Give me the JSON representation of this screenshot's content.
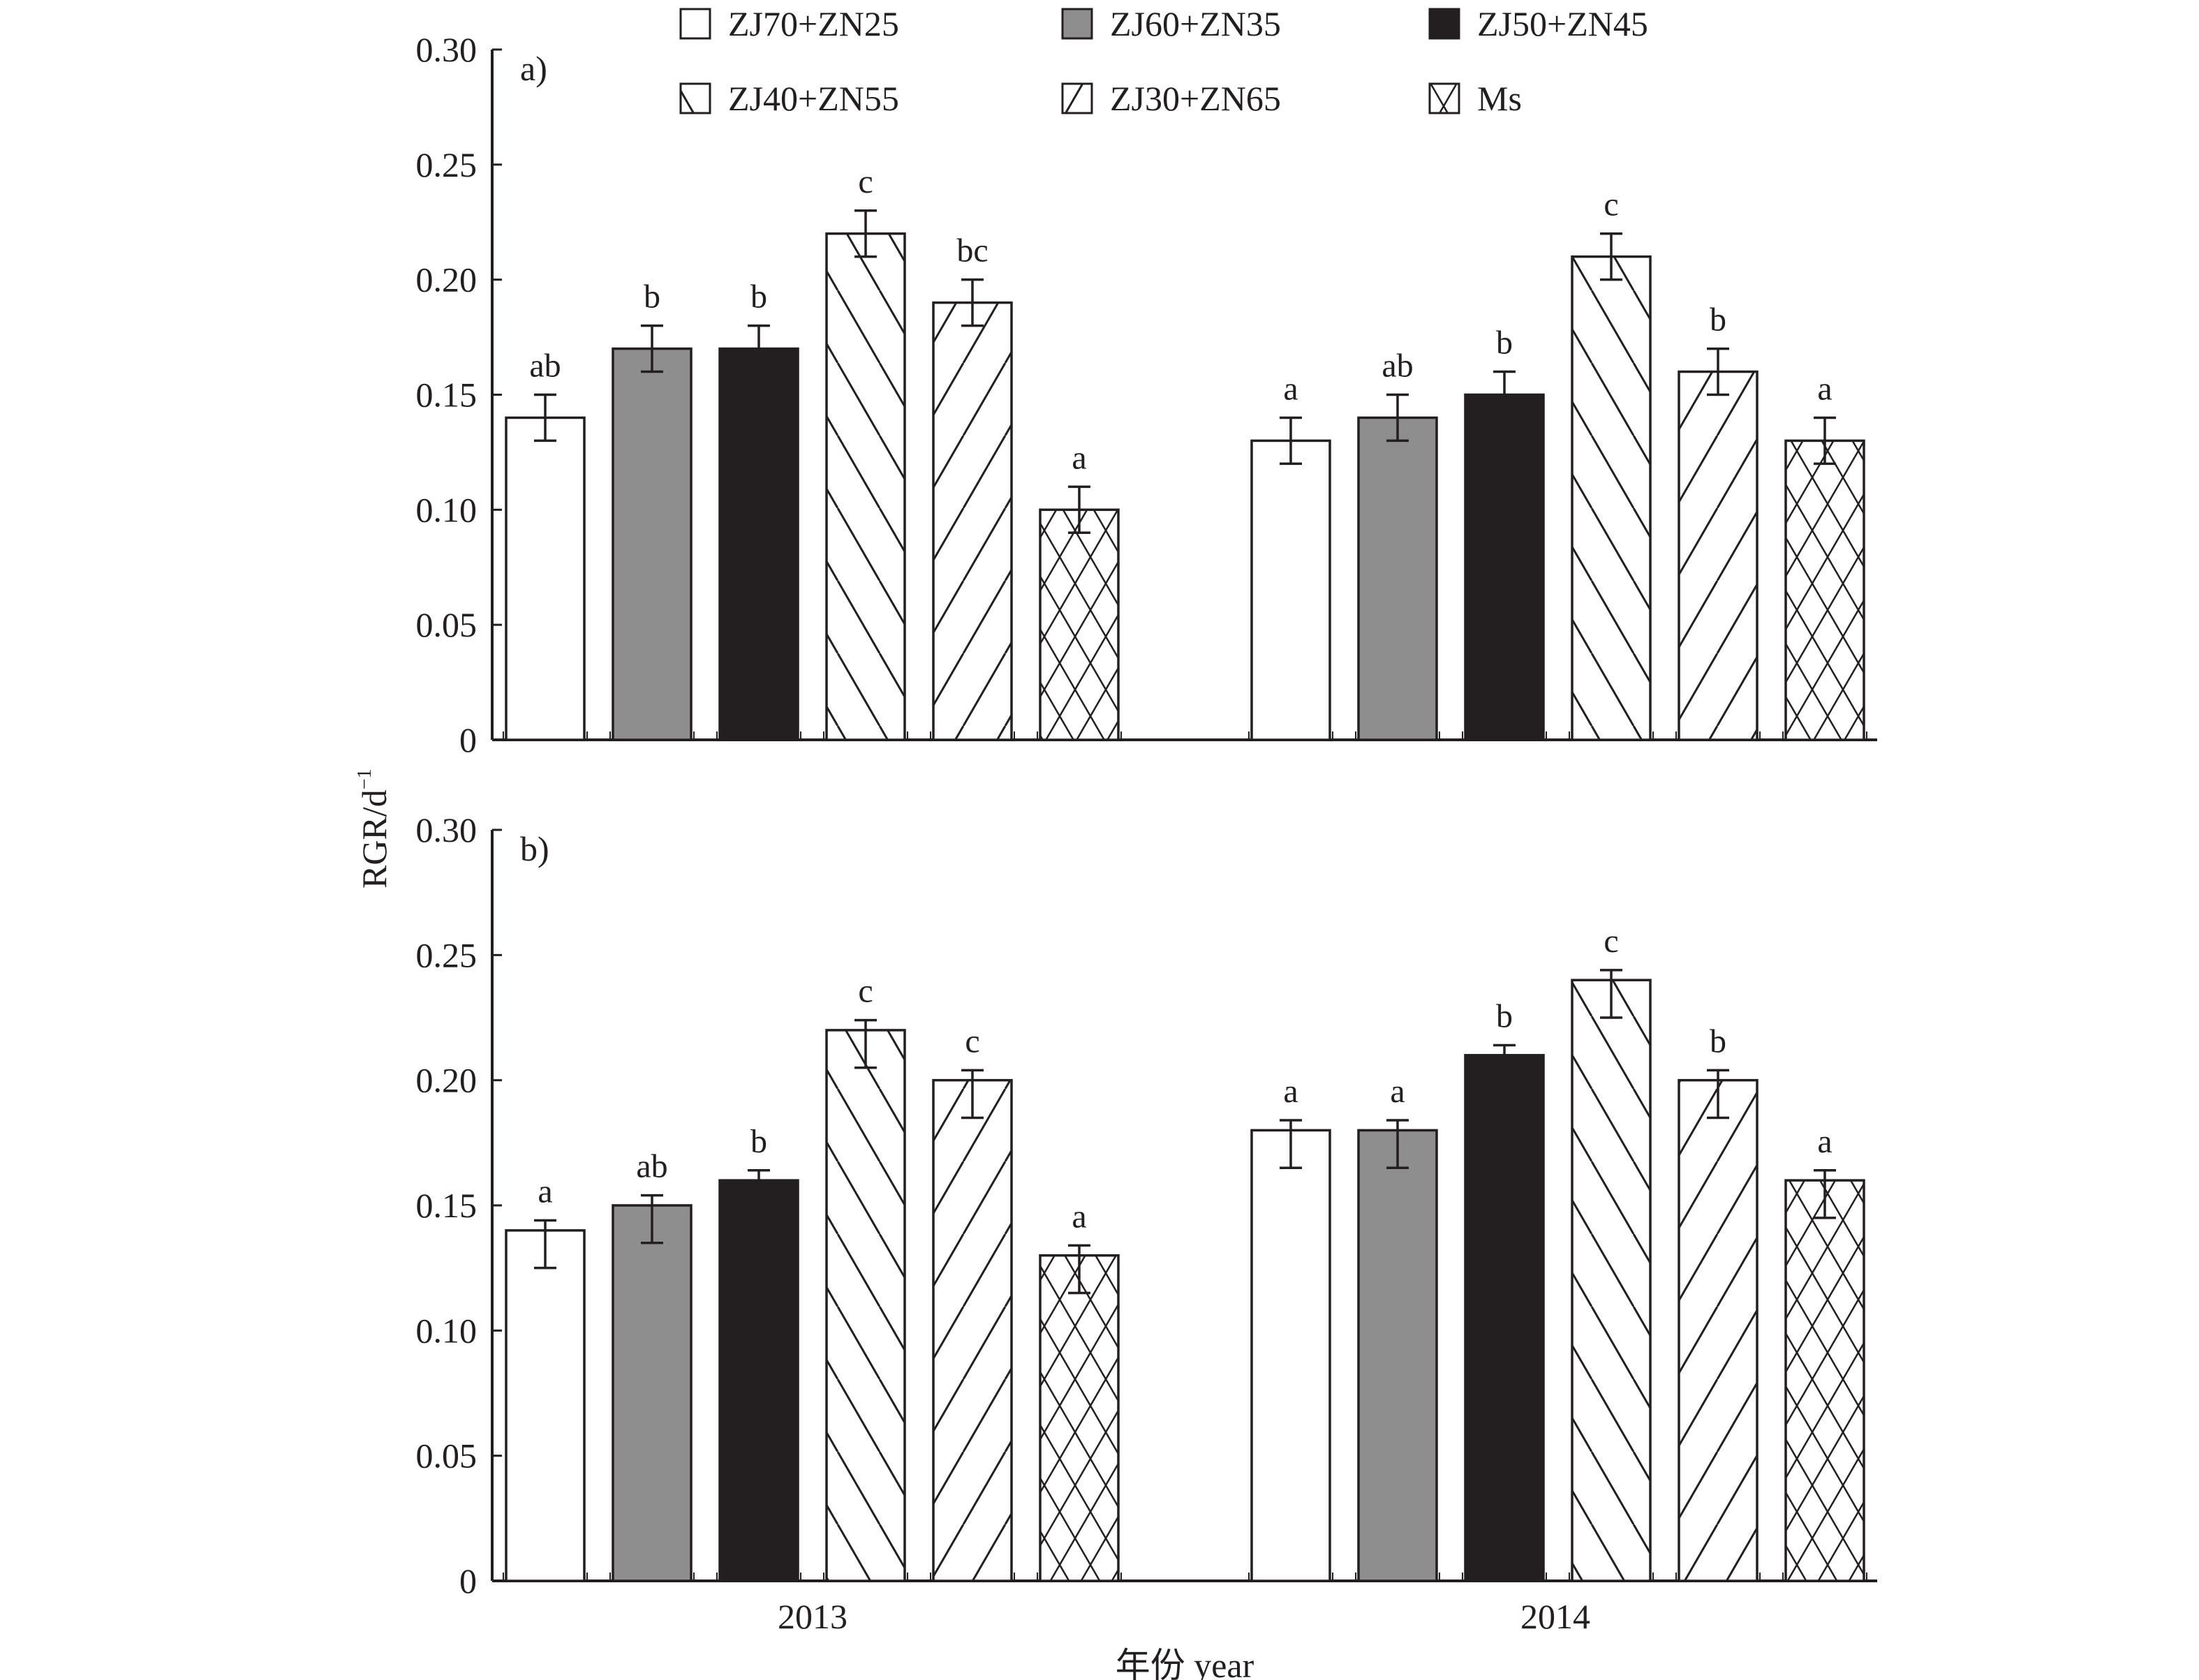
{
  "chart_data": [
    {
      "type": "bar",
      "panel_label": "a)",
      "categories": [
        "2013",
        "2014"
      ],
      "ylim": [
        0,
        0.3
      ],
      "yticks": [
        "0",
        "0.05",
        "0.10",
        "0.15",
        "0.20",
        "0.25",
        "0.30"
      ],
      "ytick_values": [
        0,
        0.05,
        0.1,
        0.15,
        0.2,
        0.25,
        0.3
      ],
      "series": [
        {
          "name": "ZJ70+ZN25",
          "values": [
            0.14,
            0.13
          ],
          "err_up": [
            0.01,
            0.01
          ],
          "err_down": [
            0.01,
            0.01
          ],
          "letters": [
            "ab",
            "a"
          ]
        },
        {
          "name": "ZJ60+ZN35",
          "values": [
            0.17,
            0.14
          ],
          "err_up": [
            0.01,
            0.01
          ],
          "err_down": [
            0.01,
            0.01
          ],
          "letters": [
            "b",
            "ab"
          ]
        },
        {
          "name": "ZJ50+ZN45",
          "values": [
            0.17,
            0.15
          ],
          "err_up": [
            0.01,
            0.01
          ],
          "err_down": [
            0.01,
            0.01
          ],
          "letters": [
            "b",
            "b"
          ]
        },
        {
          "name": "ZJ40+ZN55",
          "values": [
            0.22,
            0.21
          ],
          "err_up": [
            0.01,
            0.01
          ],
          "err_down": [
            0.01,
            0.01
          ],
          "letters": [
            "c",
            "c"
          ]
        },
        {
          "name": "ZJ30+ZN65",
          "values": [
            0.19,
            0.16
          ],
          "err_up": [
            0.01,
            0.01
          ],
          "err_down": [
            0.01,
            0.01
          ],
          "letters": [
            "bc",
            "b"
          ]
        },
        {
          "name": "Ms",
          "values": [
            0.1,
            0.13
          ],
          "err_up": [
            0.01,
            0.01
          ],
          "err_down": [
            0.01,
            0.01
          ],
          "letters": [
            "a",
            "a"
          ]
        }
      ]
    },
    {
      "type": "bar",
      "panel_label": "b)",
      "categories": [
        "2013",
        "2014"
      ],
      "ylim": [
        0,
        0.3
      ],
      "yticks": [
        "0",
        "0.05",
        "0.10",
        "0.15",
        "0.20",
        "0.25",
        "0.30"
      ],
      "ytick_values": [
        0,
        0.05,
        0.1,
        0.15,
        0.2,
        0.25,
        0.3
      ],
      "series": [
        {
          "name": "ZJ70+ZN25",
          "values": [
            0.14,
            0.18
          ],
          "err_up": [
            0.004,
            0.004
          ],
          "err_down": [
            0.015,
            0.015
          ],
          "letters": [
            "a",
            "a"
          ]
        },
        {
          "name": "ZJ60+ZN35",
          "values": [
            0.15,
            0.18
          ],
          "err_up": [
            0.004,
            0.004
          ],
          "err_down": [
            0.015,
            0.015
          ],
          "letters": [
            "ab",
            "a"
          ]
        },
        {
          "name": "ZJ50+ZN45",
          "values": [
            0.16,
            0.21
          ],
          "err_up": [
            0.004,
            0.004
          ],
          "err_down": [
            0,
            0
          ],
          "letters": [
            "b",
            "b"
          ]
        },
        {
          "name": "ZJ40+ZN55",
          "values": [
            0.22,
            0.24
          ],
          "err_up": [
            0.004,
            0.004
          ],
          "err_down": [
            0.015,
            0.015
          ],
          "letters": [
            "c",
            "c"
          ]
        },
        {
          "name": "ZJ30+ZN65",
          "values": [
            0.2,
            0.2
          ],
          "err_up": [
            0.004,
            0.004
          ],
          "err_down": [
            0.015,
            0.015
          ],
          "letters": [
            "c",
            "b"
          ]
        },
        {
          "name": "Ms",
          "values": [
            0.13,
            0.16
          ],
          "err_up": [
            0.004,
            0.004
          ],
          "err_down": [
            0.015,
            0.015
          ],
          "letters": [
            "a",
            "a"
          ]
        }
      ]
    }
  ],
  "legend": {
    "placement": "top",
    "items": [
      {
        "label": "ZJ70+ZN25",
        "fill": "white"
      },
      {
        "label": "ZJ60+ZN35",
        "fill": "#8f8e8f"
      },
      {
        "label": "ZJ50+ZN45",
        "fill": "#231f20"
      },
      {
        "label": "ZJ40+ZN55",
        "fill": "back-hatch"
      },
      {
        "label": "ZJ30+ZN65",
        "fill": "fwd-hatch"
      },
      {
        "label": "Ms",
        "fill": "cross-hatch"
      }
    ]
  },
  "ylabel": "RGR/d",
  "ylabel_sup": "−1",
  "xlabel": "年份 year",
  "colors": {
    "ink": "#231f20",
    "gray": "#8f8e8f",
    "black": "#231f20"
  }
}
